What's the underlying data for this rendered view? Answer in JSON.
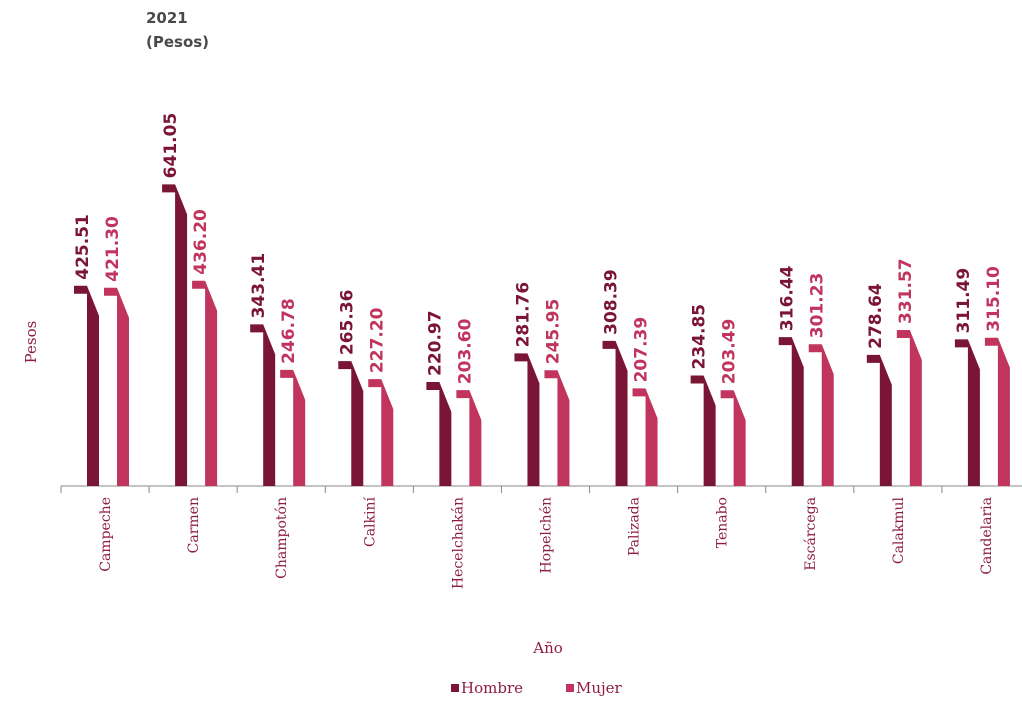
{
  "header": {
    "line1": "2021",
    "line2": "(Pesos)"
  },
  "chart_data": {
    "type": "bar",
    "title": "2021 (Pesos)",
    "xlabel": "Año",
    "ylabel": "Pesos",
    "categories": [
      "Campeche",
      "Carmen",
      "Champotón",
      "Calkiní",
      "Hecelchakán",
      "Hopelchén",
      "Palizada",
      "Tenabo",
      "Escárcega",
      "Calakmul",
      "Candelaria"
    ],
    "series": [
      {
        "name": "Hombre",
        "color": "#7b1535",
        "values": [
          425.51,
          641.05,
          343.41,
          265.36,
          220.97,
          281.76,
          308.39,
          234.85,
          316.44,
          278.64,
          311.49
        ],
        "labels": [
          "425.51",
          "641.05",
          "343.41",
          "265.36",
          "220.97",
          "281.76",
          "308.39",
          "234.85",
          "316.44",
          "278.64",
          "311.49"
        ]
      },
      {
        "name": "Mujer",
        "color": "#c0345e",
        "values": [
          421.3,
          436.2,
          246.78,
          227.2,
          203.6,
          245.95,
          207.39,
          203.49,
          301.23,
          331.57,
          315.1
        ],
        "labels": [
          "421.30",
          "436.20",
          "246.78",
          "227.20",
          "203.60",
          "245.95",
          "207.39",
          "203.49",
          "301.23",
          "331.57",
          "315.10"
        ]
      }
    ],
    "ylim": [
      0,
      660
    ],
    "grid": false,
    "legend": "bottom-center"
  }
}
